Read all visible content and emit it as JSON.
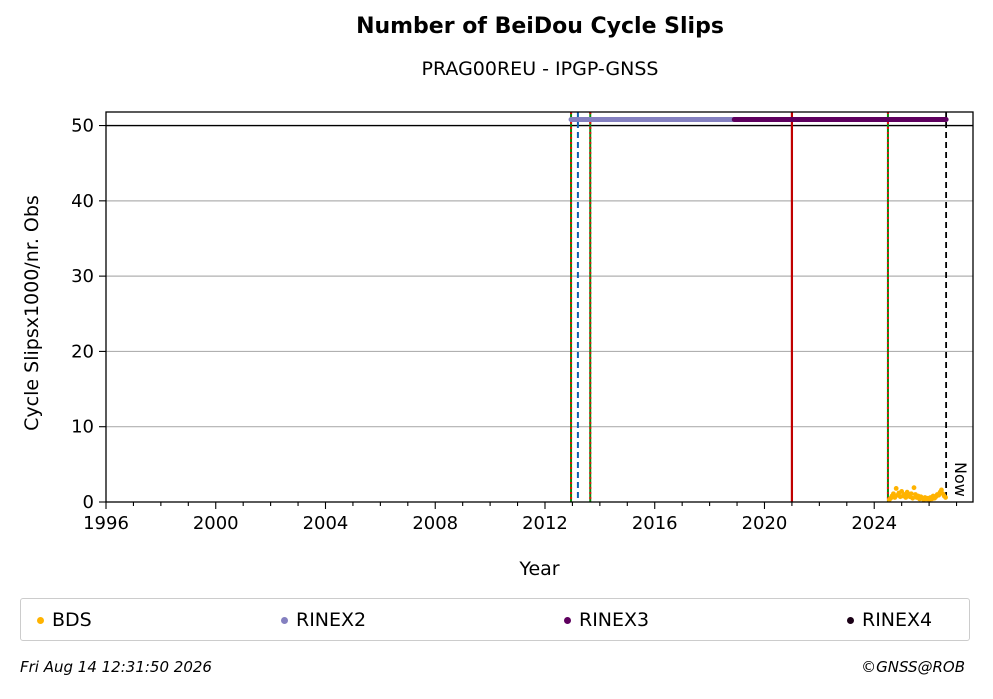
{
  "title": "Number of BeiDou Cycle Slips",
  "subtitle": "PRAG00REU - IPGP-GNSS",
  "chart_data": {
    "type": "scatter",
    "xlabel": "Year",
    "ylabel": "Cycle Slipsx1000/nr. Obs",
    "xlim": [
      1996,
      2027.6
    ],
    "ylim": [
      0,
      51.8
    ],
    "xticks": [
      1996,
      2000,
      2004,
      2008,
      2012,
      2016,
      2020,
      2024
    ],
    "yticks": [
      0,
      10,
      20,
      30,
      40,
      50
    ],
    "grid": "horizontal",
    "now_label": "Now",
    "now_year": 2026.62,
    "reference_line_y": 50,
    "legend_placement": "bottom",
    "series": [
      {
        "name": "BDS",
        "color": "#ffb300",
        "x": [
          2024.55,
          2024.6,
          2024.65,
          2024.7,
          2024.75,
          2024.8,
          2024.85,
          2024.9,
          2024.95,
          2025.0,
          2025.05,
          2025.1,
          2025.15,
          2025.2,
          2025.25,
          2025.3,
          2025.35,
          2025.4,
          2025.45,
          2025.5,
          2025.55,
          2025.6,
          2025.65,
          2025.7,
          2025.75,
          2025.8,
          2025.85,
          2025.9,
          2025.95,
          2026.0,
          2026.05,
          2026.1,
          2026.15,
          2026.2,
          2026.25,
          2026.3,
          2026.35,
          2026.4,
          2026.45,
          2026.5,
          2026.55,
          2026.6
        ],
        "y": [
          0.3,
          0.5,
          0.8,
          1.1,
          0.6,
          1.8,
          0.9,
          1.2,
          0.7,
          1.4,
          0.8,
          1.0,
          0.6,
          1.3,
          0.9,
          0.7,
          1.1,
          0.5,
          1.9,
          1.0,
          0.6,
          0.8,
          0.4,
          0.7,
          0.5,
          0.3,
          0.6,
          0.4,
          0.5,
          0.3,
          0.6,
          0.4,
          0.8,
          0.5,
          0.7,
          1.0,
          0.9,
          1.3,
          1.6,
          1.1,
          0.8,
          0.6
        ]
      },
      {
        "name": "RINEX2",
        "color": "#8480c0",
        "x_start": 2012.95,
        "x_end": 2018.9,
        "y": 50.8
      },
      {
        "name": "RINEX3",
        "color": "#5e005e",
        "x_start": 2018.9,
        "x_end": 2026.62,
        "y": 50.8
      },
      {
        "name": "RINEX4",
        "color": "#1a0016"
      }
    ],
    "event_lines": [
      {
        "x": 2012.95,
        "style": "green-red-dotted"
      },
      {
        "x": 2013.2,
        "style": "blue-dashed"
      },
      {
        "x": 2013.65,
        "style": "green-red-dotted"
      },
      {
        "x": 2021.0,
        "style": "red-solid"
      },
      {
        "x": 2024.5,
        "style": "green-red-dotted"
      }
    ]
  },
  "legend": [
    {
      "label": "BDS",
      "color": "#ffb300"
    },
    {
      "label": "RINEX2",
      "color": "#8480c0"
    },
    {
      "label": "RINEX3",
      "color": "#5e005e"
    },
    {
      "label": "RINEX4",
      "color": "#1a0016"
    }
  ],
  "footer": {
    "timestamp": "Fri Aug 14 12:31:50 2026",
    "copyright": "©GNSS@ROB"
  }
}
